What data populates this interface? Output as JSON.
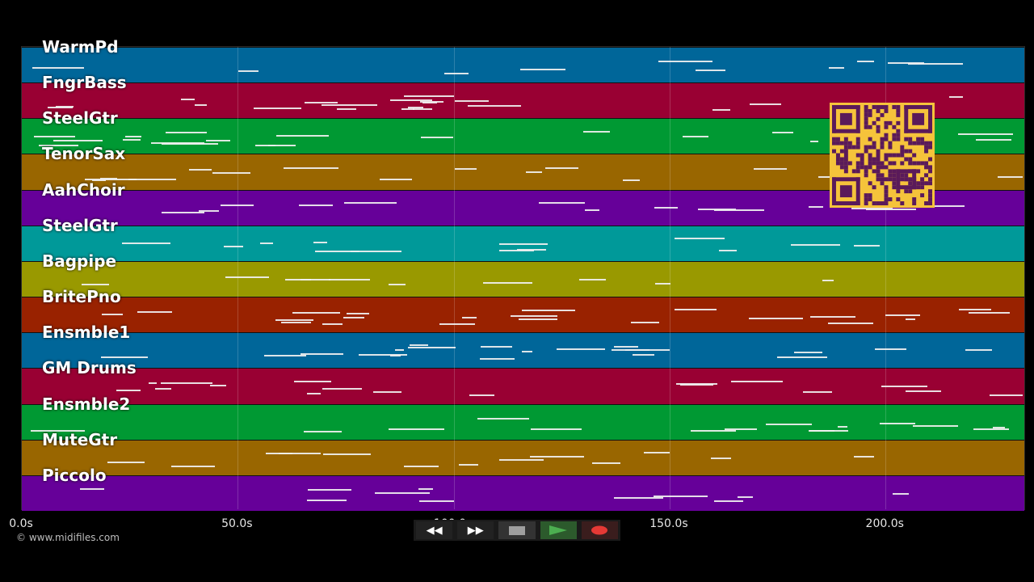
{
  "tracks": [
    {
      "name": "WarmPd",
      "color": "#006699"
    },
    {
      "name": "FngrBass",
      "color": "#990033"
    },
    {
      "name": "SteelGtr",
      "color": "#009933"
    },
    {
      "name": "TenorSax",
      "color": "#996600"
    },
    {
      "name": "AahChoir",
      "color": "#660099"
    },
    {
      "name": "SteelGtr",
      "color": "#009999"
    },
    {
      "name": "Bagpipe",
      "color": "#999900"
    },
    {
      "name": "BritePno",
      "color": "#992200"
    },
    {
      "name": "Ensmble1",
      "color": "#006699"
    },
    {
      "name": "GM Drums",
      "color": "#990033"
    },
    {
      "name": "Ensmble2",
      "color": "#009933"
    },
    {
      "name": "MuteGtr",
      "color": "#996600"
    },
    {
      "name": "Piccolo",
      "color": "#660099"
    }
  ],
  "timeline": {
    "max_seconds": 232.5,
    "ticks": [
      "0.0s",
      "50.0s",
      "100.0s",
      "150.0s",
      "200.0s"
    ],
    "tick_values": [
      0,
      50,
      100,
      150,
      200
    ]
  },
  "copyright": "© www.midifiles.com",
  "transport": {
    "rewind_label": "◀◀",
    "forward_label": "▶▶",
    "stop_icon": "stop-icon",
    "play_icon": "play-icon",
    "record_icon": "record-icon",
    "colors": {
      "play": "#4caf50",
      "record": "#e53935",
      "stop": "#9e9e9e"
    }
  },
  "qr_code": {
    "color_fg": "#5a1a5a",
    "color_bg": "#f5c33b"
  }
}
